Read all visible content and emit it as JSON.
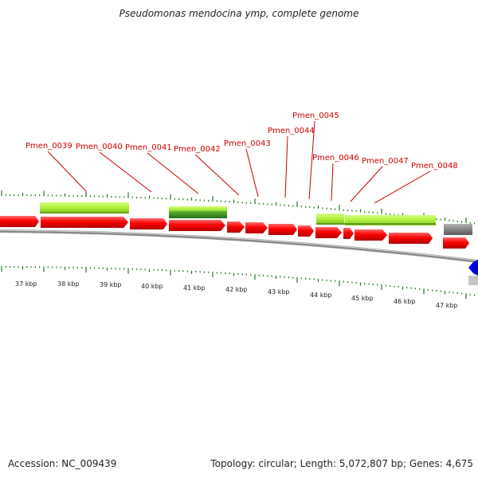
{
  "title": "Pseudomonas mendocina ymp, complete genome",
  "footer": {
    "accession_label": "Accession: NC_009439",
    "summary": "Topology: circular; Length: 5,072,807 bp; Genes: 4,675"
  },
  "colors": {
    "cds": "#ff0000",
    "cds_dark": "#b80000",
    "rna_light": "#aef03c",
    "rna_dark": "#3a8a1e",
    "tick": "#1a7a1a",
    "backbone": "#8a8a8a",
    "label": "#cc0000",
    "other": "#808080",
    "blue": "#0000dd"
  },
  "scale_labels": [
    "37 kbp",
    "38 kbp",
    "39 kbp",
    "40 kbp",
    "41 kbp",
    "42 kbp",
    "43 kbp",
    "44 kbp",
    "45 kbp",
    "46 kbp",
    "47 kbp"
  ],
  "gene_labels": [
    "Pmen_0039",
    "Pmen_0040",
    "Pmen_0041",
    "Pmen_0042",
    "Pmen_0043",
    "Pmen_0044",
    "Pmen_0045",
    "Pmen_0046",
    "Pmen_0047",
    "Pmen_0048"
  ]
}
